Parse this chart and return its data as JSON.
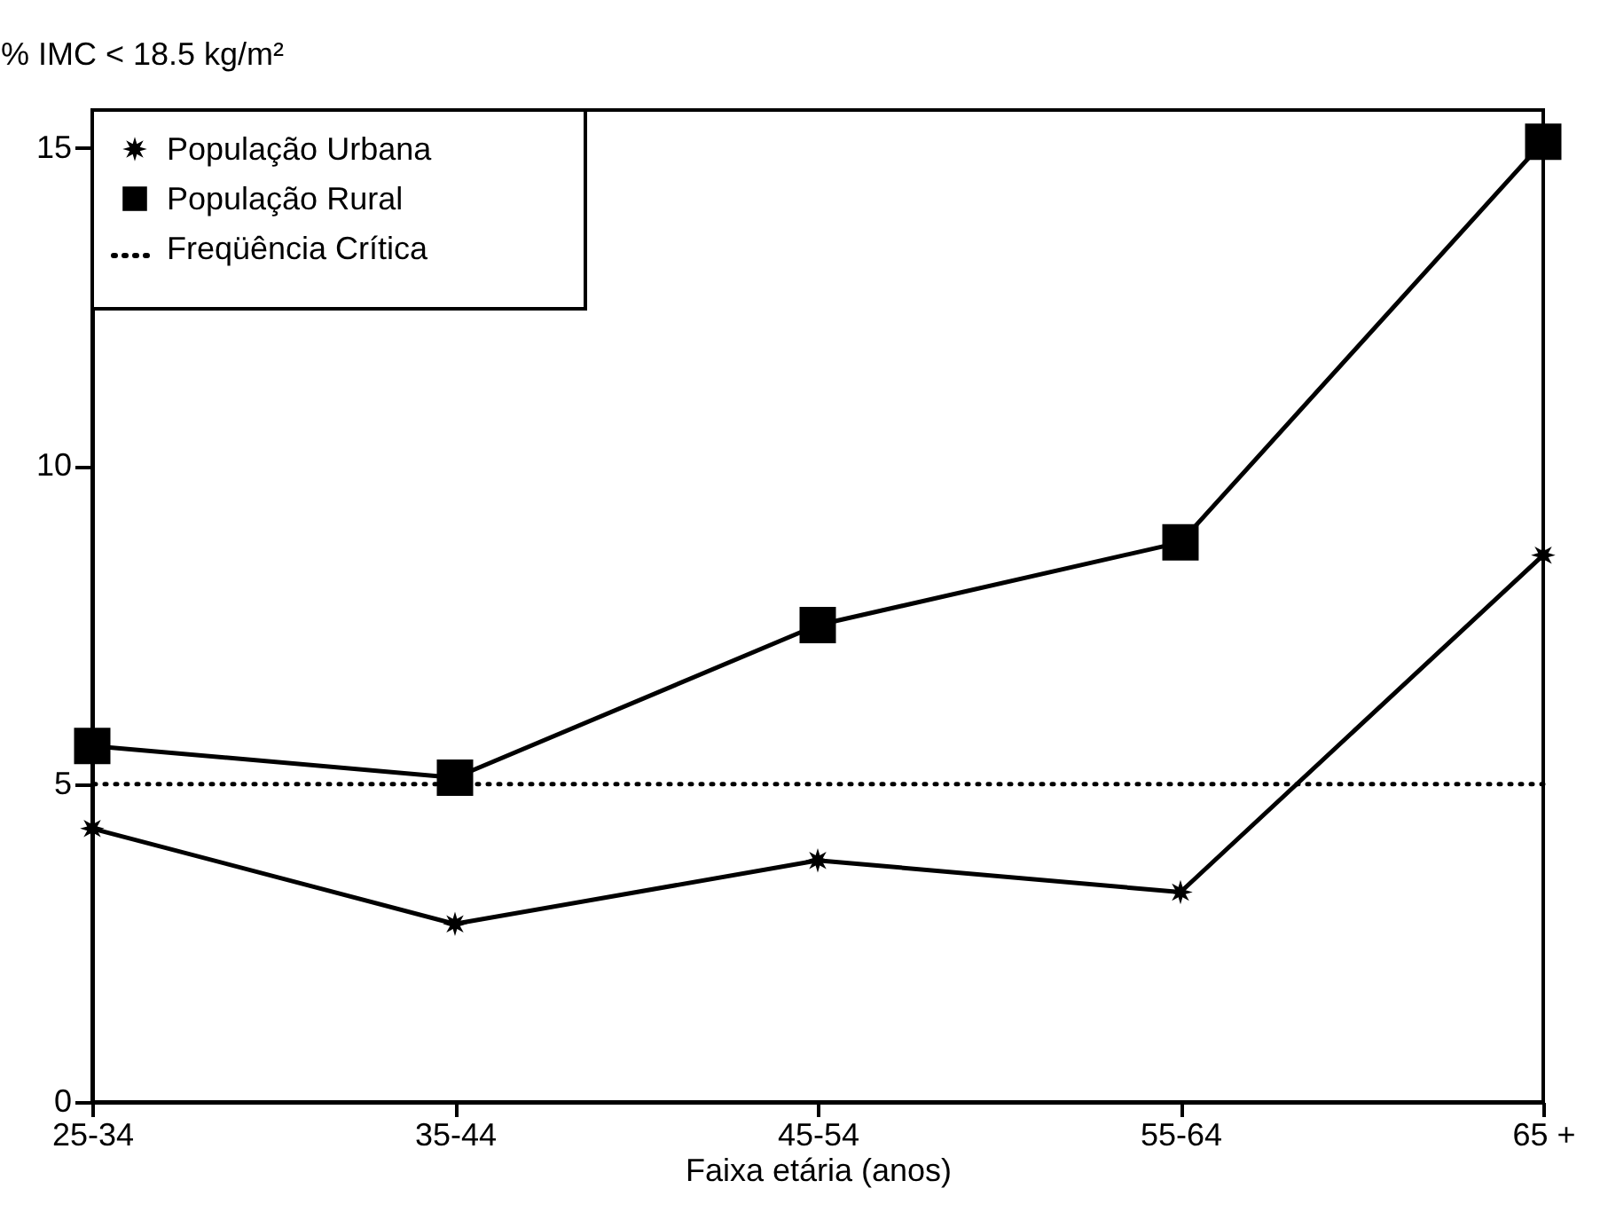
{
  "chart_data": {
    "type": "line",
    "ylabel": "% IMC < 18.5 kg/m²",
    "xlabel": "Faixa etária (anos)",
    "categories": [
      "25-34",
      "35-44",
      "45-54",
      "55-64",
      "65 +"
    ],
    "series": [
      {
        "name": "População Urbana",
        "color": "#000000",
        "marker": "star",
        "values": [
          4.3,
          2.8,
          3.8,
          3.3,
          8.6
        ]
      },
      {
        "name": "População Rural",
        "color": "#000000",
        "marker": "square",
        "values": [
          5.6,
          5.1,
          7.5,
          8.8,
          15.1
        ]
      }
    ],
    "ylim": [
      0,
      15.6
    ],
    "yticks": [
      0,
      5,
      10,
      15
    ],
    "ref_lines": [
      {
        "axis": "y",
        "value": 5,
        "label": "Freqüência Crítica",
        "color": "#000000",
        "line_style": "dotted"
      }
    ],
    "legend": "top left"
  }
}
